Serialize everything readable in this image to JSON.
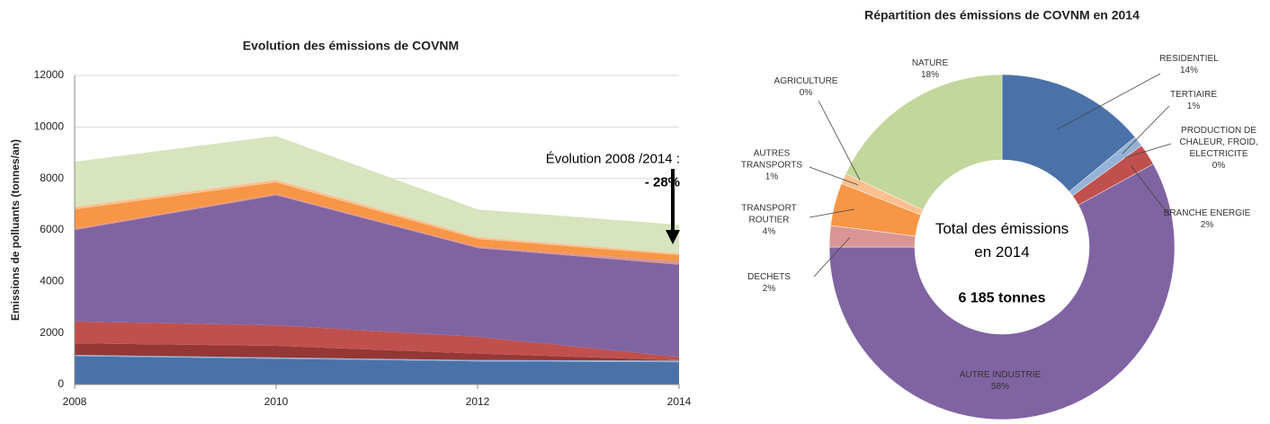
{
  "chart_data": [
    {
      "type": "area",
      "title": "Evolution des émissions de COVNM",
      "y_label": "Emissions de polluants (tonnes/an)",
      "annotations": [
        "Évolution 2008 /2014 :",
        "- 28%"
      ],
      "x": [
        2008,
        2010,
        2012,
        2014
      ],
      "xlim": [
        2008,
        2014
      ],
      "xticks": [
        2008,
        2010,
        2012,
        2014
      ],
      "ylim": [
        0,
        12000
      ],
      "yticks": [
        0,
        2000,
        4000,
        6000,
        8000,
        10000,
        12000
      ],
      "grid": true,
      "stacked": true,
      "series": [
        {
          "color": "#4a72a8",
          "values": [
            1100,
            1000,
            900,
            866
          ]
        },
        {
          "color": "#95b3d7",
          "values": [
            50,
            50,
            50,
            62
          ]
        },
        {
          "color": "#953735",
          "values": [
            450,
            450,
            250,
            15
          ]
        },
        {
          "color": "#c0504d",
          "values": [
            850,
            800,
            650,
            124
          ]
        },
        {
          "color": "#8064a2",
          "values": [
            3550,
            5050,
            3450,
            3587
          ]
        },
        {
          "color": "#d99694",
          "values": [
            50,
            50,
            50,
            124
          ]
        },
        {
          "color": "#f79646",
          "values": [
            750,
            450,
            300,
            247
          ]
        },
        {
          "color": "#fac090",
          "values": [
            100,
            100,
            80,
            62
          ]
        },
        {
          "color": "#d7e4bd",
          "values": [
            1750,
            1700,
            1070,
            1113
          ]
        }
      ]
    },
    {
      "type": "donut",
      "title": "Répartition des émissions de COVNM en 2014",
      "annotations": [
        "Total des émissions en 2014",
        "6 185 tonnes"
      ],
      "categories": [
        "RESIDENTIEL",
        "TERTIAIRE",
        "PRODUCTION DE CHALEUR, FROID, ELECTRICITE",
        "BRANCHE ENERGIE",
        "AUTRE INDUSTRIE",
        "DECHETS",
        "TRANSPORT ROUTIER",
        "AUTRES TRANSPORTS",
        "AGRICULTURE",
        "NATURE"
      ],
      "values": [
        14,
        1,
        0,
        2,
        58,
        2,
        4,
        1,
        0,
        18
      ],
      "value_labels": [
        "14%",
        "1%",
        "0%",
        "2%",
        "58%",
        "2%",
        "4%",
        "1%",
        "0%",
        "18%"
      ],
      "colors": [
        "#4a72a8",
        "#95b3d7",
        "#953735",
        "#c0504d",
        "#8064a2",
        "#d99694",
        "#f79646",
        "#fac090",
        "#ffff99",
        "#c3d69b"
      ]
    }
  ]
}
